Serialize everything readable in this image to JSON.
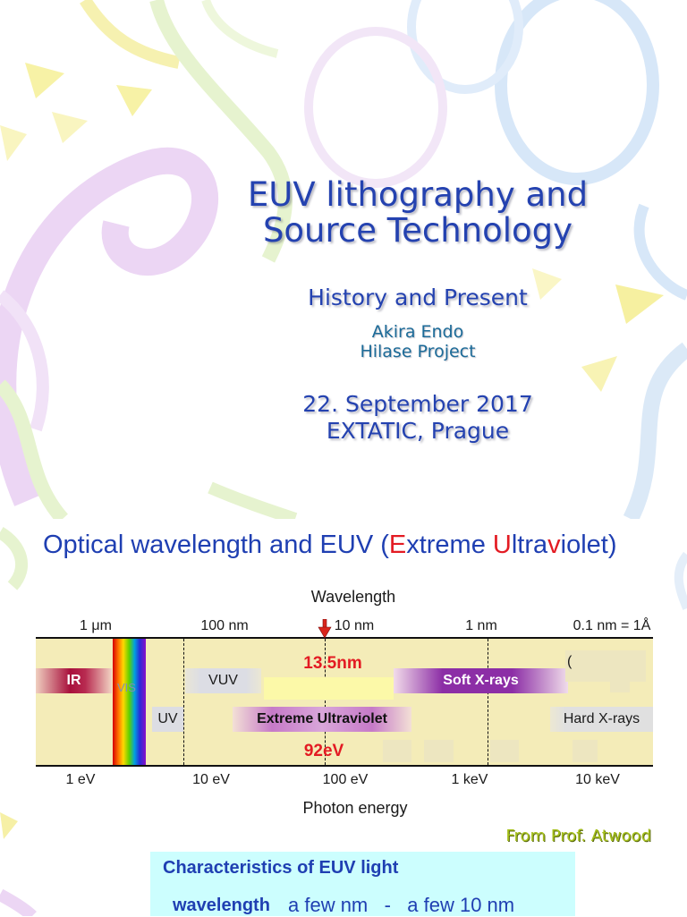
{
  "slide1": {
    "title_line1": "EUV lithography and",
    "title_line2": "Source Technology",
    "subtitle": "History and Present",
    "author": "Akira Endo",
    "affiliation": "Hilase Project",
    "date": "22. September 2017",
    "venue": "EXTATIC, Prague"
  },
  "slide2": {
    "title_segments": [
      {
        "text": "Optical wavelength and EUV (",
        "highlight": false
      },
      {
        "text": "E",
        "highlight": true
      },
      {
        "text": "xtreme ",
        "highlight": false
      },
      {
        "text": "U",
        "highlight": true
      },
      {
        "text": "ltra",
        "highlight": false
      },
      {
        "text": "v",
        "highlight": true
      },
      {
        "text": "iolet)",
        "highlight": false
      }
    ],
    "spectrum": {
      "wavelength_axis_label": "Wavelength",
      "wavelength_ticks": [
        "1 μm",
        "100 nm",
        "10 nm",
        "1 nm",
        "0.1 nm = 1Å"
      ],
      "energy_axis_label": "Photon energy",
      "energy_ticks": [
        "1 eV",
        "10 eV",
        "100 eV",
        "1 keV",
        "10 keV"
      ],
      "bands": {
        "ir": "IR",
        "vis": "VIS",
        "vuv": "VUV",
        "uv": "UV",
        "euv": "Extreme Ultraviolet",
        "soft_xray": "Soft X-rays",
        "hard_xray": "Hard X-rays"
      },
      "euv_wavelength": "13.5nm",
      "euv_photon_energy": "92eV",
      "obscured_label_fragment": "("
    },
    "credit": "From Prof. Atwood",
    "characteristics": {
      "heading": "Characteristics of EUV light",
      "rows": [
        {
          "name": "wavelength",
          "value": "a few nm   -   a few 10 nm"
        }
      ]
    }
  },
  "colors": {
    "slide_title_blue": "#2442b0",
    "author_teal": "#1c6b98",
    "heading_blue": "#1f3fb2",
    "highlight_red": "#e31b23",
    "credit_green": "#a6c11c",
    "info_box_cyan": "#ccfefe",
    "diagram_bg": "#f4ecb8"
  }
}
